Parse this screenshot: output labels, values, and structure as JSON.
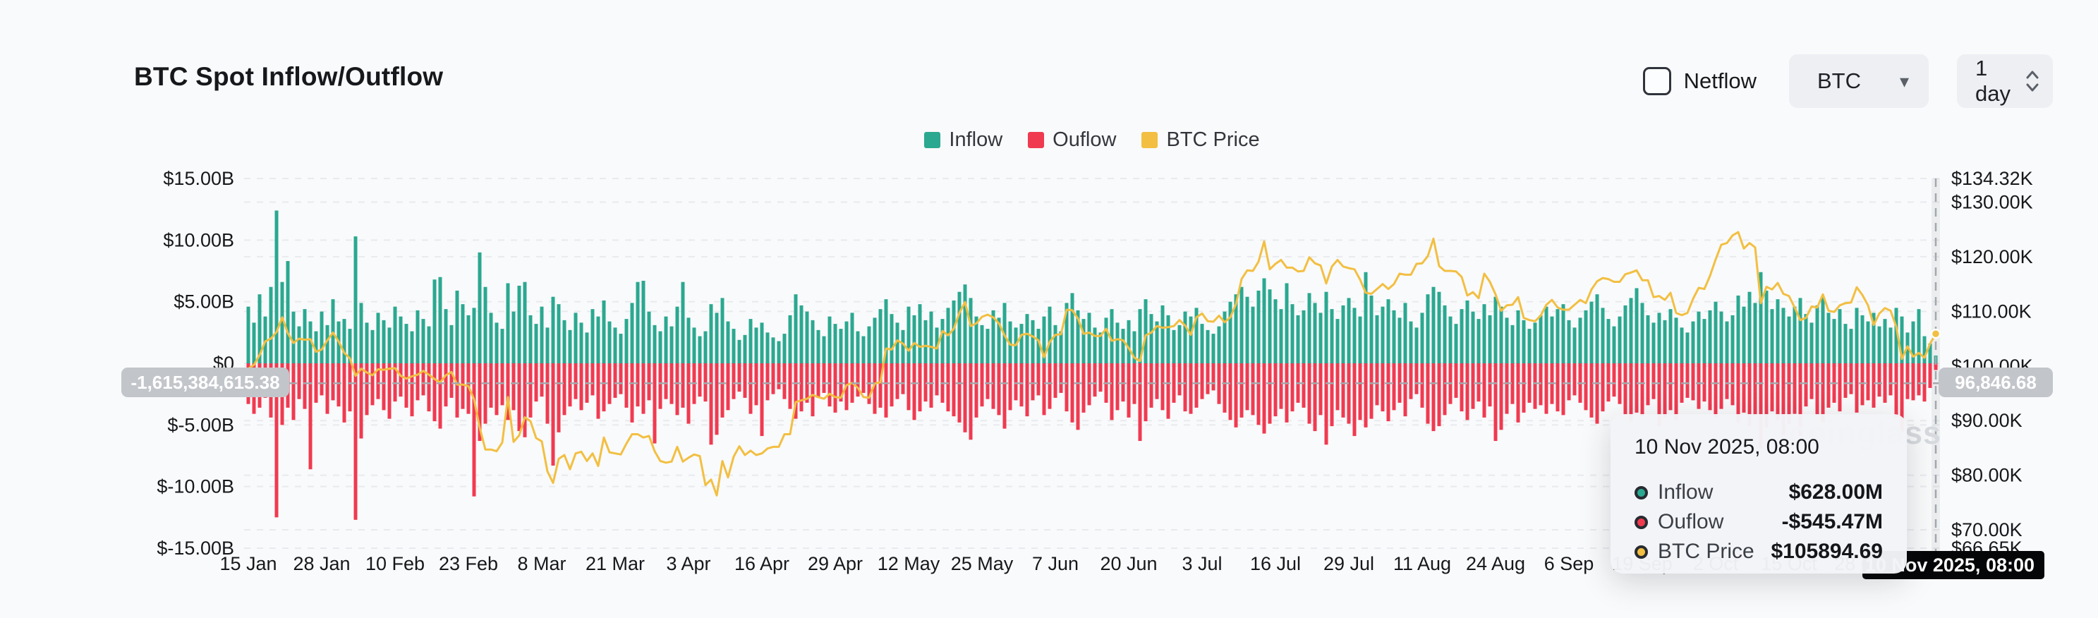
{
  "header": {
    "title": "BTC Spot Inflow/Outflow"
  },
  "controls": {
    "netflow_label": "Netflow",
    "netflow_checked": false,
    "symbol_value": "BTC",
    "symbol_caret": "▾",
    "interval_value": "1 day"
  },
  "legend": [
    {
      "label": "Inflow",
      "color": "#2aa890"
    },
    {
      "label": "Ouflow",
      "color": "#f03a50"
    },
    {
      "label": "BTC Price",
      "color": "#f2bf42"
    }
  ],
  "watermark": "coinglass",
  "crosshair": {
    "left_axis_label": "-1,615,384,615.38",
    "right_axis_label": "96,846.68",
    "x_axis_label": "10 Nov 2025, 08:00",
    "left_value_billions": -1.615,
    "day_index": 299
  },
  "tooltip": {
    "title": "10 Nov 2025, 08:00",
    "rows": [
      {
        "label": "Inflow",
        "value": "$628.00M",
        "color": "#2aa890"
      },
      {
        "label": "Ouflow",
        "value": "-$545.47M",
        "color": "#f03a50"
      },
      {
        "label": "BTC Price",
        "value": "$105894.69",
        "color": "#f2bf42"
      }
    ]
  },
  "axes": {
    "left": {
      "ticks": [
        {
          "label": "$15.00B",
          "value": 15
        },
        {
          "label": "$10.00B",
          "value": 10
        },
        {
          "label": "$5.00B",
          "value": 5
        },
        {
          "label": "$0",
          "value": 0
        },
        {
          "label": "$-5.00B",
          "value": -5
        },
        {
          "label": "$-10.00B",
          "value": -10
        },
        {
          "label": "$-15.00B",
          "value": -15
        }
      ]
    },
    "right": {
      "ticks": [
        {
          "label": "$134.32K",
          "value": 134.32
        },
        {
          "label": "$130.00K",
          "value": 130
        },
        {
          "label": "$120.00K",
          "value": 120
        },
        {
          "label": "$110.00K",
          "value": 110
        },
        {
          "label": "$100.00K",
          "value": 100
        },
        {
          "label": "$90.00K",
          "value": 90
        },
        {
          "label": "$80.00K",
          "value": 80
        },
        {
          "label": "$70.00K",
          "value": 70
        },
        {
          "label": "$66.65K",
          "value": 66.65
        }
      ]
    },
    "x": {
      "ticks": [
        {
          "label": "15 Jan",
          "day": 0
        },
        {
          "label": "28 Jan",
          "day": 13
        },
        {
          "label": "10 Feb",
          "day": 26
        },
        {
          "label": "23 Feb",
          "day": 39
        },
        {
          "label": "8 Mar",
          "day": 52
        },
        {
          "label": "21 Mar",
          "day": 65
        },
        {
          "label": "3 Apr",
          "day": 78
        },
        {
          "label": "16 Apr",
          "day": 91
        },
        {
          "label": "29 Apr",
          "day": 104
        },
        {
          "label": "12 May",
          "day": 117
        },
        {
          "label": "25 May",
          "day": 130
        },
        {
          "label": "7 Jun",
          "day": 143
        },
        {
          "label": "20 Jun",
          "day": 156
        },
        {
          "label": "3 Jul",
          "day": 169
        },
        {
          "label": "16 Jul",
          "day": 182
        },
        {
          "label": "29 Jul",
          "day": 195
        },
        {
          "label": "11 Aug",
          "day": 208
        },
        {
          "label": "24 Aug",
          "day": 221
        },
        {
          "label": "6 Sep",
          "day": 234
        },
        {
          "label": "19 Sep",
          "day": 247
        },
        {
          "label": "2 Oct",
          "day": 260
        },
        {
          "label": "15 Oct",
          "day": 273
        },
        {
          "label": "28 Oct",
          "day": 286
        }
      ]
    }
  },
  "chart_data": {
    "type": "bar+line",
    "title": "BTC Spot Inflow/Outflow",
    "x_start": "15 Jan 2025",
    "x_end": "10 Nov 2025, 08:00",
    "x_step": "1 day",
    "ylim_left_billions": [
      -15,
      15
    ],
    "ylim_right_thousands": [
      66.65,
      134.32
    ],
    "grid": "dashed-horizontal",
    "legend_position": "top-center",
    "inflow_color": "#2aa890",
    "outflow_color": "#f03a50",
    "price_color": "#f2bf42",
    "series": [
      {
        "name": "Inflow",
        "unit": "USD billions",
        "values": [
          4.6,
          3.3,
          5.6,
          3.8,
          6.2,
          12.4,
          6.6,
          8.3,
          4.2,
          3.0,
          4.4,
          3.4,
          2.6,
          4.2,
          3.1,
          5.2,
          3.4,
          3.6,
          2.8,
          10.3,
          4.9,
          3.3,
          2.7,
          4.1,
          3.5,
          2.9,
          4.6,
          3.8,
          3.2,
          2.6,
          4.3,
          3.6,
          3.0,
          6.8,
          7.0,
          4.4,
          3.1,
          5.9,
          4.8,
          3.9,
          4.5,
          9.0,
          6.2,
          4.1,
          3.3,
          2.8,
          6.5,
          4.2,
          6.3,
          6.6,
          3.9,
          3.2,
          4.6,
          2.9,
          5.4,
          4.8,
          3.5,
          2.7,
          4.1,
          3.3,
          2.5,
          4.4,
          3.8,
          5.1,
          3.4,
          2.9,
          2.4,
          3.6,
          4.9,
          6.6,
          6.7,
          4.2,
          3.1,
          2.6,
          3.8,
          3.0,
          4.6,
          6.6,
          3.7,
          2.9,
          2.2,
          2.6,
          4.8,
          4.1,
          5.3,
          3.4,
          2.8,
          1.9,
          2.3,
          3.6,
          2.9,
          3.3,
          2.5,
          2.1,
          1.8,
          2.4,
          3.9,
          5.6,
          4.7,
          4.2,
          3.5,
          2.7,
          2.2,
          3.8,
          3.2,
          2.8,
          3.4,
          4.1,
          2.6,
          2.2,
          3.0,
          3.7,
          4.4,
          5.2,
          4.0,
          3.3,
          2.7,
          4.6,
          3.9,
          4.8,
          3.5,
          4.2,
          2.9,
          3.6,
          4.5,
          5.1,
          5.8,
          6.4,
          5.3,
          3.8,
          3.1,
          2.8,
          4.3,
          3.7,
          4.9,
          3.4,
          2.9,
          3.2,
          4.0,
          3.5,
          2.8,
          3.8,
          4.6,
          3.1,
          2.6,
          4.9,
          5.7,
          4.3,
          3.6,
          4.1,
          2.9,
          2.5,
          3.7,
          4.4,
          3.3,
          2.8,
          3.5,
          2.6,
          4.4,
          5.2,
          4.0,
          3.4,
          4.7,
          3.9,
          2.7,
          3.1,
          4.2,
          3.8,
          4.5,
          3.2,
          2.7,
          2.4,
          3.0,
          4.2,
          5.0,
          5.6,
          6.2,
          5.4,
          4.6,
          5.9,
          6.9,
          6.0,
          5.2,
          4.4,
          6.5,
          4.8,
          3.9,
          4.3,
          5.7,
          4.9,
          4.1,
          5.8,
          4.4,
          3.6,
          4.7,
          5.3,
          4.5,
          3.8,
          7.4,
          5.5,
          3.9,
          4.6,
          5.2,
          4.3,
          3.7,
          4.9,
          3.4,
          2.9,
          4.1,
          5.6,
          6.2,
          5.8,
          4.7,
          3.8,
          3.2,
          4.4,
          5.1,
          4.2,
          3.6,
          4.8,
          3.9,
          5.4,
          4.6,
          3.7,
          3.1,
          4.3,
          3.5,
          2.8,
          3.3,
          3.9,
          4.6,
          3.8,
          4.4,
          4.8,
          3.5,
          2.9,
          3.7,
          4.3,
          5.0,
          5.6,
          4.5,
          3.6,
          3.0,
          3.8,
          4.7,
          5.3,
          6.1,
          4.9,
          3.9,
          3.3,
          4.1,
          3.5,
          4.4,
          3.7,
          2.9,
          2.5,
          3.4,
          4.2,
          3.6,
          4.3,
          5.0,
          4.2,
          3.4,
          3.9,
          5.5,
          4.6,
          5.8,
          4.9,
          7.4,
          5.9,
          4.4,
          5.2,
          4.5,
          3.8,
          4.6,
          5.3,
          4.0,
          3.3,
          4.7,
          5.4,
          4.1,
          3.6,
          4.4,
          3.2,
          2.8,
          4.5,
          3.9,
          3.4,
          4.1,
          3.0,
          3.6,
          2.9,
          4.5,
          3.8,
          2.5,
          3.4,
          4.4,
          2.2,
          1.6,
          0.628
        ]
      },
      {
        "name": "Ouflow",
        "unit": "USD billions",
        "values": [
          -3.3,
          -4.1,
          -3.6,
          -2.8,
          -4.4,
          -12.5,
          -5.0,
          -3.6,
          -4.6,
          -2.9,
          -3.7,
          -8.6,
          -3.2,
          -2.6,
          -4.1,
          -3.0,
          -3.5,
          -4.8,
          -3.9,
          -12.7,
          -6.1,
          -4.2,
          -3.4,
          -2.9,
          -3.8,
          -4.5,
          -3.1,
          -2.7,
          -3.6,
          -4.3,
          -3.0,
          -2.6,
          -3.9,
          -4.7,
          -5.3,
          -3.5,
          -2.8,
          -4.4,
          -3.7,
          -4.1,
          -10.8,
          -6.3,
          -4.9,
          -3.6,
          -4.2,
          -3.4,
          -4.6,
          -3.8,
          -5.5,
          -6.0,
          -4.4,
          -3.1,
          -2.7,
          -4.9,
          -8.3,
          -5.6,
          -4.2,
          -3.5,
          -2.9,
          -3.8,
          -3.2,
          -2.6,
          -4.5,
          -3.9,
          -3.3,
          -2.8,
          -2.5,
          -3.6,
          -4.8,
          -3.5,
          -4.1,
          -3.0,
          -6.5,
          -3.7,
          -2.9,
          -3.3,
          -4.2,
          -3.6,
          -4.9,
          -3.3,
          -2.7,
          -3.1,
          -6.6,
          -5.8,
          -4.4,
          -3.8,
          -2.9,
          -2.3,
          -2.8,
          -4.1,
          -3.4,
          -5.9,
          -3.0,
          -2.5,
          -2.1,
          -2.9,
          -3.7,
          -4.5,
          -3.9,
          -3.2,
          -4.3,
          -2.8,
          -2.4,
          -3.5,
          -4.0,
          -3.1,
          -3.8,
          -3.2,
          -2.7,
          -2.4,
          -3.3,
          -4.1,
          -3.6,
          -4.4,
          -3.5,
          -2.9,
          -2.5,
          -3.8,
          -4.6,
          -3.9,
          -3.1,
          -3.6,
          -2.6,
          -3.2,
          -3.9,
          -4.3,
          -4.8,
          -5.6,
          -6.2,
          -4.4,
          -3.5,
          -2.9,
          -3.7,
          -4.2,
          -5.3,
          -3.8,
          -3.0,
          -3.5,
          -4.3,
          -3.0,
          -2.6,
          -4.2,
          -3.7,
          -2.8,
          -2.4,
          -3.9,
          -4.8,
          -5.4,
          -4.0,
          -3.4,
          -2.7,
          -2.3,
          -3.2,
          -4.6,
          -3.8,
          -3.1,
          -4.4,
          -3.3,
          -6.3,
          -4.7,
          -3.6,
          -2.9,
          -3.8,
          -4.5,
          -3.2,
          -2.6,
          -3.9,
          -4.1,
          -3.6,
          -2.9,
          -2.5,
          -2.2,
          -3.3,
          -4.0,
          -4.6,
          -5.2,
          -4.4,
          -3.8,
          -4.2,
          -5.0,
          -5.7,
          -4.9,
          -4.3,
          -3.7,
          -4.8,
          -3.9,
          -3.2,
          -3.6,
          -4.9,
          -5.5,
          -4.2,
          -6.6,
          -5.1,
          -3.8,
          -4.4,
          -4.9,
          -5.9,
          -4.6,
          -5.2,
          -4.5,
          -3.4,
          -3.9,
          -4.7,
          -3.8,
          -3.2,
          -4.3,
          -2.9,
          -2.5,
          -3.6,
          -4.9,
          -5.5,
          -5.1,
          -4.2,
          -3.3,
          -2.8,
          -3.9,
          -4.6,
          -3.7,
          -3.1,
          -4.4,
          -3.5,
          -6.3,
          -5.4,
          -4.1,
          -3.3,
          -4.8,
          -4.0,
          -3.2,
          -3.7,
          -3.4,
          -4.1,
          -3.3,
          -3.9,
          -4.2,
          -3.0,
          -2.6,
          -3.2,
          -3.8,
          -4.4,
          -4.9,
          -3.9,
          -3.1,
          -2.7,
          -3.3,
          -4.2,
          -4.7,
          -4.0,
          -4.3,
          -3.4,
          -2.9,
          -5.1,
          -4.4,
          -3.8,
          -4.6,
          -3.2,
          -2.8,
          -3.0,
          -3.7,
          -3.1,
          -3.8,
          -4.4,
          -3.7,
          -2.9,
          -3.4,
          -4.8,
          -4.0,
          -5.1,
          -4.3,
          -6.9,
          -5.2,
          -3.9,
          -4.6,
          -5.8,
          -4.9,
          -4.1,
          -5.9,
          -3.5,
          -2.9,
          -4.2,
          -4.8,
          -3.6,
          -3.2,
          -3.9,
          -2.8,
          -2.5,
          -4.0,
          -3.4,
          -3.0,
          -3.6,
          -2.7,
          -3.2,
          -2.6,
          -4.4,
          -5.6,
          -2.9,
          -3.0,
          -2.6,
          -3.1,
          -2.0,
          -0.545
        ]
      },
      {
        "name": "BTC Price",
        "unit": "USD thousands",
        "values": [
          99.5,
          100.2,
          102.0,
          104.5,
          105.0,
          106.2,
          108.9,
          106.0,
          104.2,
          105.0,
          104.8,
          104.9,
          102.6,
          103.0,
          104.7,
          106.1,
          104.5,
          102.4,
          101.4,
          98.2,
          99.5,
          98.8,
          98.3,
          99.4,
          99.3,
          99.5,
          99.6,
          98.2,
          97.7,
          98.1,
          98.4,
          99.1,
          98.4,
          97.6,
          97.0,
          98.3,
          98.9,
          96.6,
          96.6,
          96.3,
          93.9,
          88.7,
          84.7,
          84.7,
          84.4,
          86.0,
          94.3,
          86.1,
          87.3,
          90.6,
          89.9,
          86.8,
          86.2,
          80.7,
          78.6,
          83.0,
          83.7,
          81.1,
          84.0,
          84.3,
          82.6,
          84.0,
          81.7,
          86.9,
          84.2,
          84.0,
          83.8,
          85.8,
          87.5,
          87.5,
          86.9,
          87.2,
          84.4,
          82.6,
          82.3,
          82.5,
          85.2,
          82.5,
          83.2,
          83.8,
          83.5,
          78.2,
          79.2,
          76.3,
          82.6,
          79.6,
          83.4,
          85.3,
          83.7,
          84.5,
          83.7,
          84.0,
          84.9,
          85.2,
          85.2,
          87.5,
          87.5,
          93.4,
          93.7,
          94.0,
          94.7,
          94.3,
          94.0,
          94.9,
          94.3,
          94.2,
          96.5,
          96.9,
          96.0,
          94.3,
          94.2,
          96.8,
          97.0,
          103.2,
          103.0,
          104.7,
          104.1,
          102.8,
          104.2,
          103.5,
          103.7,
          103.5,
          103.2,
          106.4,
          105.6,
          106.8,
          109.7,
          111.7,
          107.3,
          107.8,
          109.0,
          109.4,
          108.9,
          107.8,
          105.6,
          103.9,
          103.8,
          105.7,
          105.9,
          105.4,
          104.7,
          101.6,
          104.4,
          105.7,
          105.8,
          110.3,
          110.2,
          108.7,
          105.9,
          106.1,
          105.5,
          105.5,
          106.8,
          104.6,
          104.9,
          104.7,
          103.3,
          101.5,
          100.9,
          105.6,
          106.1,
          107.3,
          107.0,
          107.1,
          107.3,
          108.4,
          107.4,
          105.7,
          108.9,
          109.6,
          108.2,
          108.1,
          109.2,
          108.0,
          108.9,
          111.3,
          115.9,
          117.5,
          117.4,
          119.1,
          122.8,
          117.7,
          118.7,
          119.4,
          118.0,
          118.0,
          117.3,
          117.4,
          119.9,
          118.8,
          118.4,
          115.1,
          118.2,
          119.4,
          118.2,
          117.9,
          117.7,
          115.8,
          113.4,
          113.2,
          114.1,
          115.0,
          114.1,
          115.0,
          116.9,
          116.7,
          116.7,
          118.7,
          118.8,
          120.1,
          123.3,
          118.3,
          117.4,
          117.4,
          117.3,
          116.3,
          112.9,
          113.5,
          112.4,
          116.9,
          115.4,
          113.1,
          110.1,
          111.1,
          111.2,
          112.6,
          108.8,
          108.4,
          108.2,
          109.2,
          111.2,
          112.1,
          110.7,
          110.3,
          110.3,
          111.2,
          112.1,
          111.5,
          114.0,
          115.5,
          116.1,
          115.9,
          115.4,
          115.4,
          116.8,
          117.1,
          117.5,
          115.7,
          115.7,
          112.6,
          112.8,
          112.1,
          113.4,
          109.7,
          109.3,
          109.7,
          112.3,
          114.3,
          114.1,
          116.5,
          119.5,
          122.2,
          122.5,
          123.9,
          124.5,
          121.5,
          122.5,
          121.7,
          111.5,
          114.5,
          114.0,
          115.2,
          113.2,
          112.8,
          110.7,
          108.4,
          108.8,
          110.9,
          110.7,
          113.1,
          110.1,
          109.9,
          111.1,
          111.5,
          111.6,
          114.4,
          113.0,
          111.1,
          107.5,
          109.6,
          110.6,
          110.1,
          107.2,
          101.3,
          103.6,
          101.7,
          102.4,
          101.5,
          104.1,
          105.89
        ]
      }
    ]
  }
}
